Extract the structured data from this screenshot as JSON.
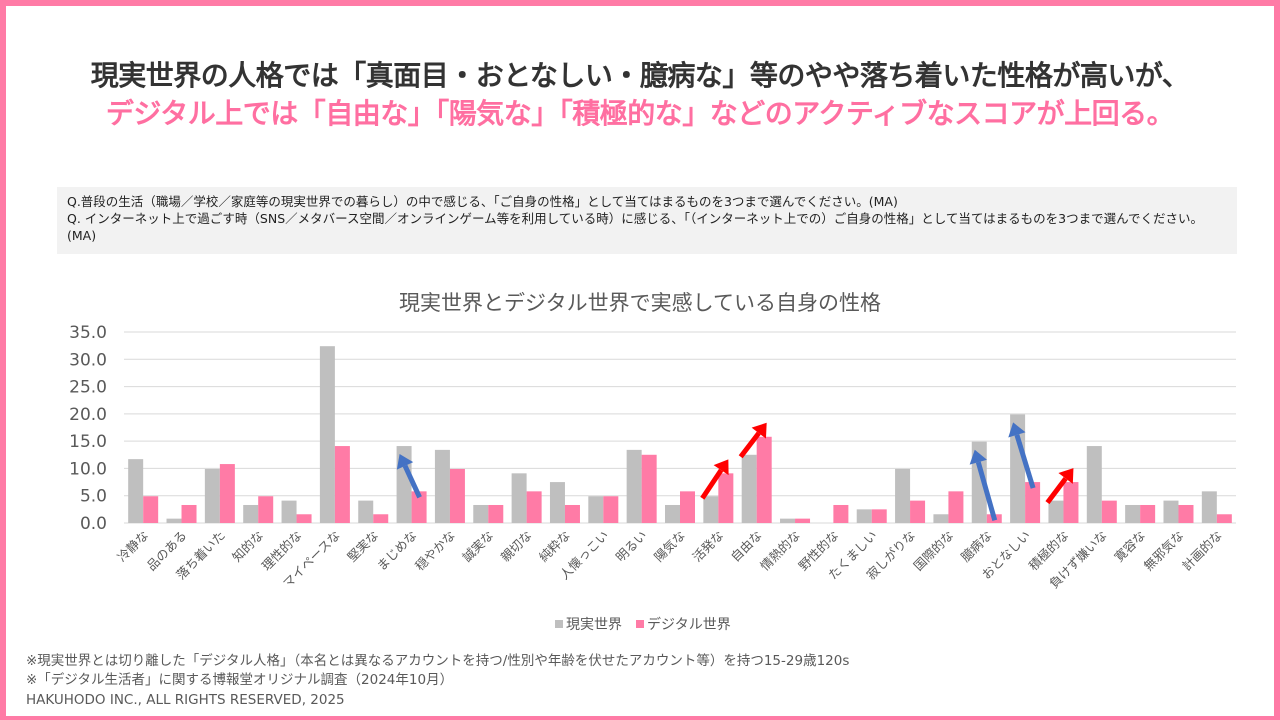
{
  "headline": {
    "line1": "現実世界の人格では「真面目・おとなしい・臆病な」等のやや落ち着いた性格が高いが、",
    "line2": "デジタル上では「自由な」「陽気な」「積極的な」などのアクティブなスコアが上回る。"
  },
  "question": {
    "q1": "Q.普段の生活（職場／学校／家庭等の現実世界での暮らし）の中で感じる、「ご自身の性格」として当てはまるものを3つまで選んでください。(MA)",
    "q2": "Q. インターネット上で過ごす時（SNS／メタバース空間／オンラインゲーム等を利用している時）に感じる、「（インターネット上での）ご自身の性格」として当てはまるものを3つまで選んでください。(MA)"
  },
  "colors": {
    "frame": "#FF7BA6",
    "real": "#BFBFBF",
    "digital": "#FF7BA6",
    "arrow_up": "#FF0000",
    "arrow_down": "#4472C4",
    "grid": "#D9D9D9"
  },
  "chart_data": {
    "type": "bar",
    "title": "現実世界とデジタル世界で実感している自身の性格",
    "xlabel": "",
    "ylabel": "",
    "ylim": [
      0,
      35
    ],
    "yticks": [
      "0.0",
      "5.0",
      "10.0",
      "15.0",
      "20.0",
      "25.0",
      "30.0",
      "35.0"
    ],
    "grid": true,
    "legend_position": "bottom",
    "categories": [
      "冷静な",
      "品のある",
      "落ち着いた",
      "知的な",
      "理性的な",
      "マイペースな",
      "堅実な",
      "まじめな",
      "穏やかな",
      "誠実な",
      "親切な",
      "純粋な",
      "人懐っこい",
      "明るい",
      "陽気な",
      "活発な",
      "自由な",
      "情熱的な",
      "野性的な",
      "たくましい",
      "寂しがりな",
      "国際的な",
      "臆病な",
      "おとなしい",
      "積極的な",
      "負けず嫌いな",
      "寛容な",
      "無邪気な",
      "計画的な"
    ],
    "series": [
      {
        "name": "現実世界",
        "values": [
          11.7,
          0.8,
          9.9,
          3.3,
          4.1,
          32.4,
          4.1,
          14.1,
          13.4,
          3.3,
          9.1,
          7.5,
          4.9,
          13.4,
          3.3,
          4.9,
          12.5,
          0.8,
          0.0,
          2.5,
          9.9,
          1.6,
          14.9,
          19.9,
          4.1,
          14.1,
          3.3,
          4.1,
          5.8
        ]
      },
      {
        "name": "デジタル世界",
        "values": [
          4.9,
          3.3,
          10.8,
          4.9,
          1.6,
          14.1,
          1.6,
          5.8,
          9.9,
          3.3,
          5.8,
          3.3,
          4.9,
          12.5,
          5.8,
          9.1,
          15.8,
          0.8,
          3.3,
          2.5,
          4.1,
          5.8,
          1.6,
          7.5,
          7.5,
          4.1,
          3.3,
          3.3,
          1.6
        ]
      }
    ],
    "annotations": [
      {
        "category": "まじめな",
        "type": "arrow",
        "direction": "decrease",
        "color": "blue"
      },
      {
        "category": "活発な",
        "type": "arrow",
        "direction": "increase",
        "color": "red"
      },
      {
        "category": "自由な",
        "type": "arrow",
        "direction": "increase",
        "color": "red"
      },
      {
        "category": "臆病な",
        "type": "arrow",
        "direction": "decrease",
        "color": "blue"
      },
      {
        "category": "おとなしい",
        "type": "arrow",
        "direction": "decrease",
        "color": "blue"
      },
      {
        "category": "積極的な",
        "type": "arrow",
        "direction": "increase",
        "color": "red"
      }
    ]
  },
  "legend": {
    "real": "現実世界",
    "digital": "デジタル世界"
  },
  "footnotes": {
    "note1": "※現実世界とは切り離した「デジタル人格」（本名とは異なるアカウントを持つ/性別や年齢を伏せたアカウント等）を持つ15-29歳120s",
    "note2": "※「デジタル生活者」に関する博報堂オリジナル調査（2024年10月）",
    "copyright": "HAKUHODO INC., ALL RIGHTS RESERVED, 2025"
  }
}
